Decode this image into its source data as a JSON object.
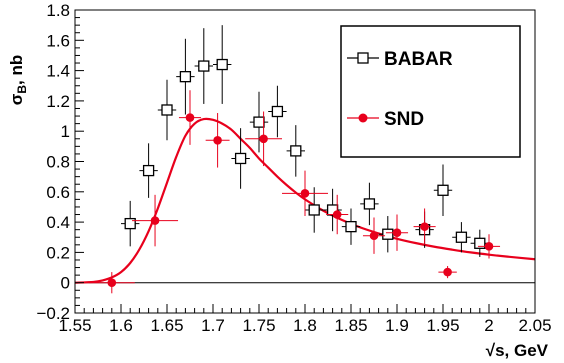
{
  "chart_data": {
    "type": "scatter",
    "title": "",
    "xlabel": "√s, GeV",
    "ylabel_main": "σ",
    "ylabel_sub": "B",
    "ylabel_rest": ", nb",
    "xlim": [
      1.55,
      2.05
    ],
    "ylim": [
      -0.2,
      1.8
    ],
    "xticks": [
      1.55,
      1.6,
      1.65,
      1.7,
      1.75,
      1.8,
      1.85,
      1.9,
      1.95,
      2.0,
      2.05
    ],
    "xtick_labels": [
      "1.55",
      "1.6",
      "1.65",
      "1.7",
      "1.75",
      "1.8",
      "1.85",
      "1.9",
      "1.95",
      "2",
      "2.05"
    ],
    "yticks": [
      -0.2,
      0,
      0.2,
      0.4,
      0.6,
      0.8,
      1.0,
      1.2,
      1.4,
      1.6,
      1.8
    ],
    "ytick_labels": [
      "−0.2",
      "0",
      "0.2",
      "0.4",
      "0.6",
      "0.8",
      "1",
      "1.2",
      "1.4",
      "1.6",
      "1.8"
    ],
    "legend_position": "top-right",
    "series": [
      {
        "name": "BABAR",
        "marker": "open-square",
        "color": "#000000",
        "points": [
          {
            "x": 1.61,
            "y": 0.39,
            "xerr": 0.01,
            "yerr": 0.15
          },
          {
            "x": 1.63,
            "y": 0.74,
            "xerr": 0.01,
            "yerr": 0.18
          },
          {
            "x": 1.65,
            "y": 1.14,
            "xerr": 0.01,
            "yerr": 0.2
          },
          {
            "x": 1.67,
            "y": 1.36,
            "xerr": 0.01,
            "yerr": 0.25
          },
          {
            "x": 1.69,
            "y": 1.43,
            "xerr": 0.01,
            "yerr": 0.25
          },
          {
            "x": 1.71,
            "y": 1.44,
            "xerr": 0.01,
            "yerr": 0.26
          },
          {
            "x": 1.73,
            "y": 0.82,
            "xerr": 0.01,
            "yerr": 0.2
          },
          {
            "x": 1.75,
            "y": 1.06,
            "xerr": 0.01,
            "yerr": 0.2
          },
          {
            "x": 1.77,
            "y": 1.13,
            "xerr": 0.01,
            "yerr": 0.17
          },
          {
            "x": 1.79,
            "y": 0.87,
            "xerr": 0.01,
            "yerr": 0.17
          },
          {
            "x": 1.81,
            "y": 0.48,
            "xerr": 0.01,
            "yerr": 0.15
          },
          {
            "x": 1.83,
            "y": 0.48,
            "xerr": 0.01,
            "yerr": 0.14
          },
          {
            "x": 1.85,
            "y": 0.37,
            "xerr": 0.01,
            "yerr": 0.12
          },
          {
            "x": 1.87,
            "y": 0.52,
            "xerr": 0.01,
            "yerr": 0.14
          },
          {
            "x": 1.89,
            "y": 0.32,
            "xerr": 0.01,
            "yerr": 0.12
          },
          {
            "x": 1.93,
            "y": 0.35,
            "xerr": 0.01,
            "yerr": 0.12
          },
          {
            "x": 1.95,
            "y": 0.61,
            "xerr": 0.01,
            "yerr": 0.17
          },
          {
            "x": 1.97,
            "y": 0.3,
            "xerr": 0.01,
            "yerr": 0.1
          },
          {
            "x": 1.99,
            "y": 0.26,
            "xerr": 0.01,
            "yerr": 0.09
          }
        ]
      },
      {
        "name": "SND",
        "marker": "filled-circle",
        "color": "#e8001c",
        "points": [
          {
            "x": 1.59,
            "y": 0.0,
            "xerr": 0.025,
            "yerr": 0.07
          },
          {
            "x": 1.637,
            "y": 0.41,
            "xerr": 0.025,
            "yerr": 0.17
          },
          {
            "x": 1.675,
            "y": 1.09,
            "xerr": 0.012,
            "yerr": 0.18
          },
          {
            "x": 1.705,
            "y": 0.94,
            "xerr": 0.013,
            "yerr": 0.18
          },
          {
            "x": 1.755,
            "y": 0.95,
            "xerr": 0.02,
            "yerr": 0.18
          },
          {
            "x": 1.8,
            "y": 0.59,
            "xerr": 0.025,
            "yerr": 0.15
          },
          {
            "x": 1.835,
            "y": 0.45,
            "xerr": 0.012,
            "yerr": 0.13
          },
          {
            "x": 1.875,
            "y": 0.31,
            "xerr": 0.012,
            "yerr": 0.12
          },
          {
            "x": 1.9,
            "y": 0.33,
            "xerr": 0.012,
            "yerr": 0.12
          },
          {
            "x": 1.93,
            "y": 0.37,
            "xerr": 0.012,
            "yerr": 0.12
          },
          {
            "x": 1.955,
            "y": 0.07,
            "xerr": 0.01,
            "yerr": 0.04
          },
          {
            "x": 2.0,
            "y": 0.24,
            "xerr": 0.012,
            "yerr": 0.08
          }
        ]
      }
    ],
    "fit_curve": {
      "color": "#e8001c",
      "x": [
        1.55,
        1.57,
        1.58,
        1.59,
        1.6,
        1.61,
        1.62,
        1.63,
        1.64,
        1.65,
        1.66,
        1.67,
        1.68,
        1.69,
        1.7,
        1.71,
        1.72,
        1.73,
        1.74,
        1.75,
        1.76,
        1.77,
        1.78,
        1.79,
        1.8,
        1.82,
        1.84,
        1.86,
        1.88,
        1.9,
        1.92,
        1.94,
        1.96,
        1.98,
        2.0,
        2.02,
        2.05
      ],
      "y": [
        0.0,
        0.005,
        0.015,
        0.035,
        0.07,
        0.13,
        0.22,
        0.34,
        0.49,
        0.66,
        0.83,
        0.97,
        1.05,
        1.08,
        1.075,
        1.05,
        1.01,
        0.95,
        0.89,
        0.82,
        0.76,
        0.7,
        0.645,
        0.595,
        0.55,
        0.475,
        0.415,
        0.365,
        0.325,
        0.29,
        0.262,
        0.238,
        0.218,
        0.2,
        0.185,
        0.172,
        0.155
      ]
    }
  }
}
